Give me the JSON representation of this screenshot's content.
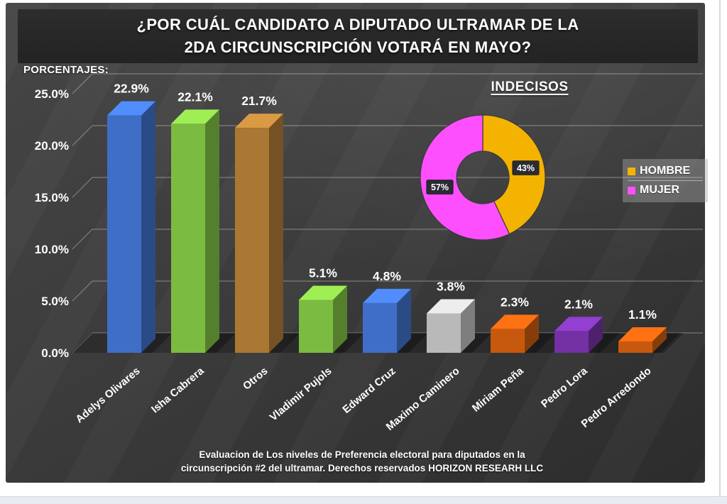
{
  "header": {
    "title": "¿POR CUÁL CANDIDATO A DIPUTADO ULTRAMAR DE LA\n2DA CIRCUNSCRIPCIÓN VOTARÁ EN MAYO?"
  },
  "footer": {
    "text": "Evaluacion de Los niveles de Preferencia electoral para diputados  en la\ncircunscripción #2 del ultramar. Derechos reservados HORIZON RESEARH LLC"
  },
  "chart_data": [
    {
      "type": "bar",
      "style": "3d",
      "ylabel": "PORCENTAJES:",
      "categories": [
        "Adelys Olivares",
        "Isha Cabrera",
        "Otros",
        "Vladimir Pujols",
        "Edward Cruz",
        "Maximo Caminero",
        "Miriam Peña",
        "Pedro Lora",
        "Pedro Arredondo"
      ],
      "values": [
        22.9,
        22.1,
        21.7,
        5.1,
        4.8,
        3.8,
        2.3,
        2.1,
        1.1
      ],
      "labels": [
        "22.9%",
        "22.1%",
        "21.7%",
        "5.1%",
        "4.8%",
        "3.8%",
        "2.3%",
        "2.1%",
        "1.1%"
      ],
      "bar_colors": [
        "#3F6EC6",
        "#7CBB42",
        "#AA7834",
        "#7CBB42",
        "#3F6EC6",
        "#B9B9B9",
        "#C7590F",
        "#7331A3",
        "#C7590F"
      ],
      "y_ticks": [
        "25.0%",
        "20.0%",
        "15.0%",
        "10.0%",
        "5.0%",
        "0.0%"
      ],
      "ylim": [
        0,
        25
      ],
      "grid": true
    },
    {
      "type": "pie",
      "donut": true,
      "title": "INDECISOS",
      "slices": [
        {
          "label": "HOMBRE",
          "value": 43,
          "pct_label": "43%",
          "color": "#F5B301"
        },
        {
          "label": "MUJER",
          "value": 57,
          "pct_label": "57%",
          "color": "#FD4FFE"
        }
      ],
      "legend_position": "right"
    }
  ],
  "colors": {
    "panel_background": "#3b3b3b",
    "title_band": "#262626",
    "text": "#ffffff",
    "gridline": "rgba(255,255,255,0.32)",
    "hombre": "#F5B301",
    "mujer": "#FD4FFE",
    "pct_label_box": "#2b2b33"
  }
}
